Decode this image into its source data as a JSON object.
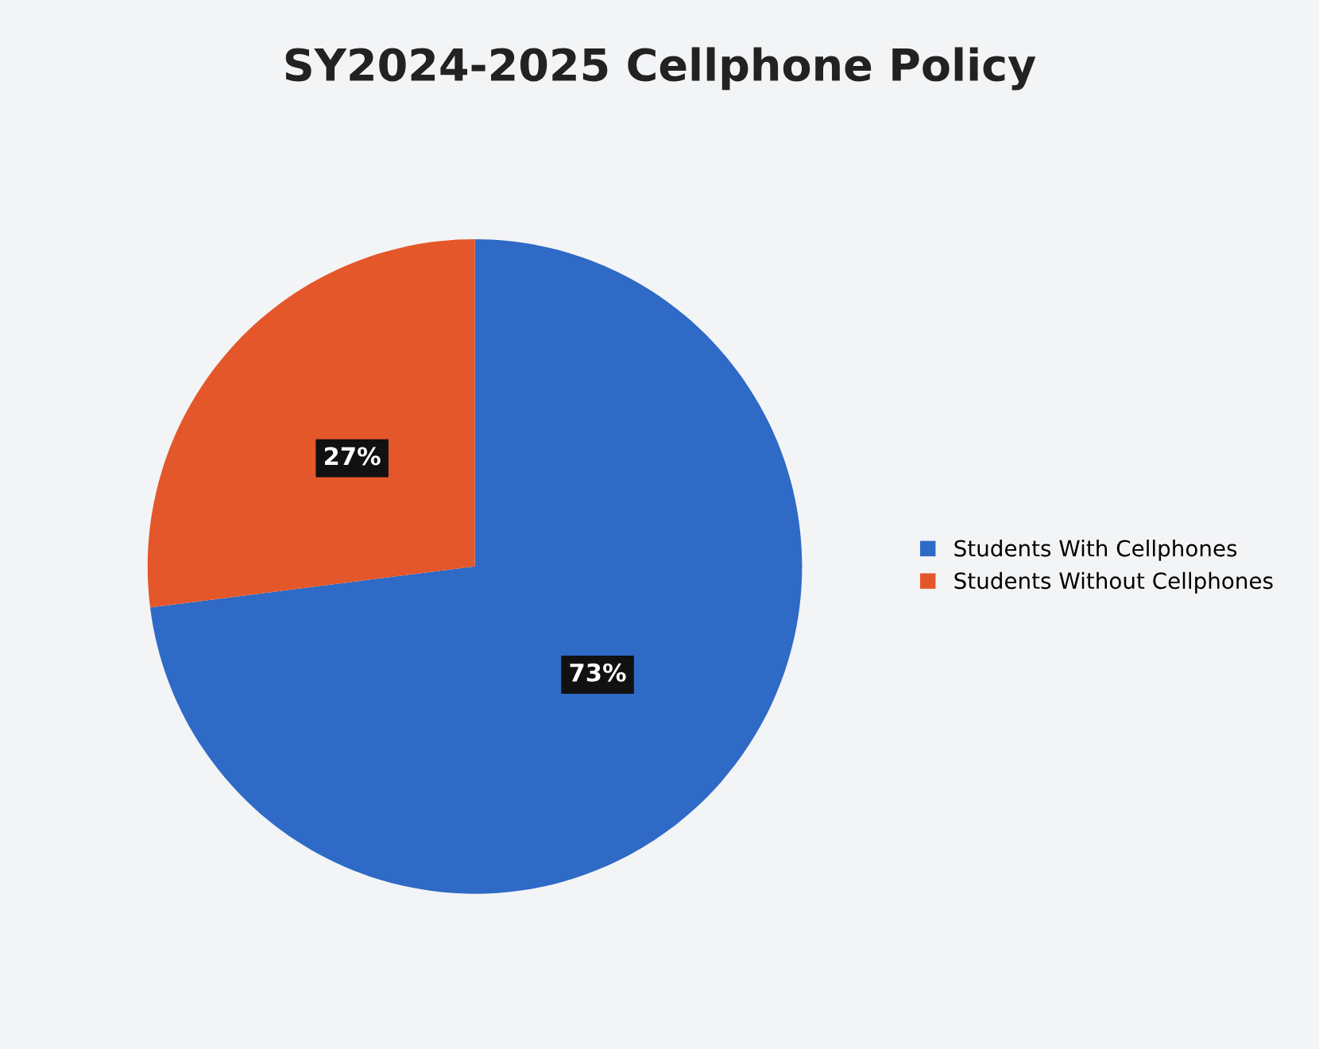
{
  "chart_data": {
    "type": "pie",
    "title": "SY2024-2025 Cellphone Policy",
    "categories": [
      "Students With Cellphones",
      "Students Without Cellphones"
    ],
    "values": [
      73,
      27
    ],
    "colors": [
      "#2e6ac6",
      "#e4572a"
    ],
    "value_labels": [
      "73%",
      "27%"
    ],
    "legend": "right"
  }
}
